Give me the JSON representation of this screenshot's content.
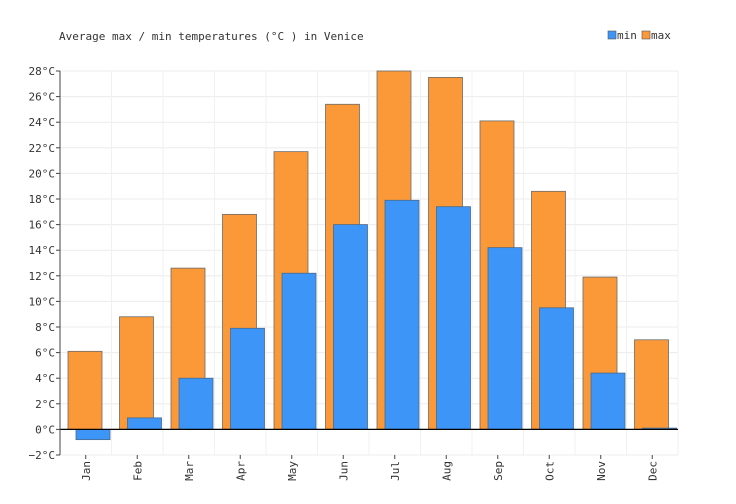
{
  "chart_data": {
    "type": "bar",
    "title": "Average max / min temperatures (°C ) in Venice",
    "xlabel": "",
    "ylabel": "",
    "categories": [
      "Jan",
      "Feb",
      "Mar",
      "Apr",
      "May",
      "Jun",
      "Jul",
      "Aug",
      "Sep",
      "Oct",
      "Nov",
      "Dec"
    ],
    "series": [
      {
        "name": "min",
        "color": "#3d95f7",
        "values": [
          -0.8,
          0.9,
          4.0,
          7.9,
          12.2,
          16.0,
          17.9,
          17.4,
          14.2,
          9.5,
          4.4,
          0.1
        ]
      },
      {
        "name": "max",
        "color": "#fb9939",
        "values": [
          6.1,
          8.8,
          12.6,
          16.8,
          21.7,
          25.4,
          28.0,
          27.5,
          24.1,
          18.6,
          11.9,
          7.0
        ]
      }
    ],
    "ylim": [
      -2,
      28
    ],
    "yticks": [
      "−2°C",
      "0°C",
      "2°C",
      "4°C",
      "6°C",
      "8°C",
      "10°C",
      "12°C",
      "14°C",
      "16°C",
      "18°C",
      "20°C",
      "22°C",
      "24°C",
      "26°C",
      "28°C"
    ],
    "grid": true,
    "legend": "top-right"
  }
}
